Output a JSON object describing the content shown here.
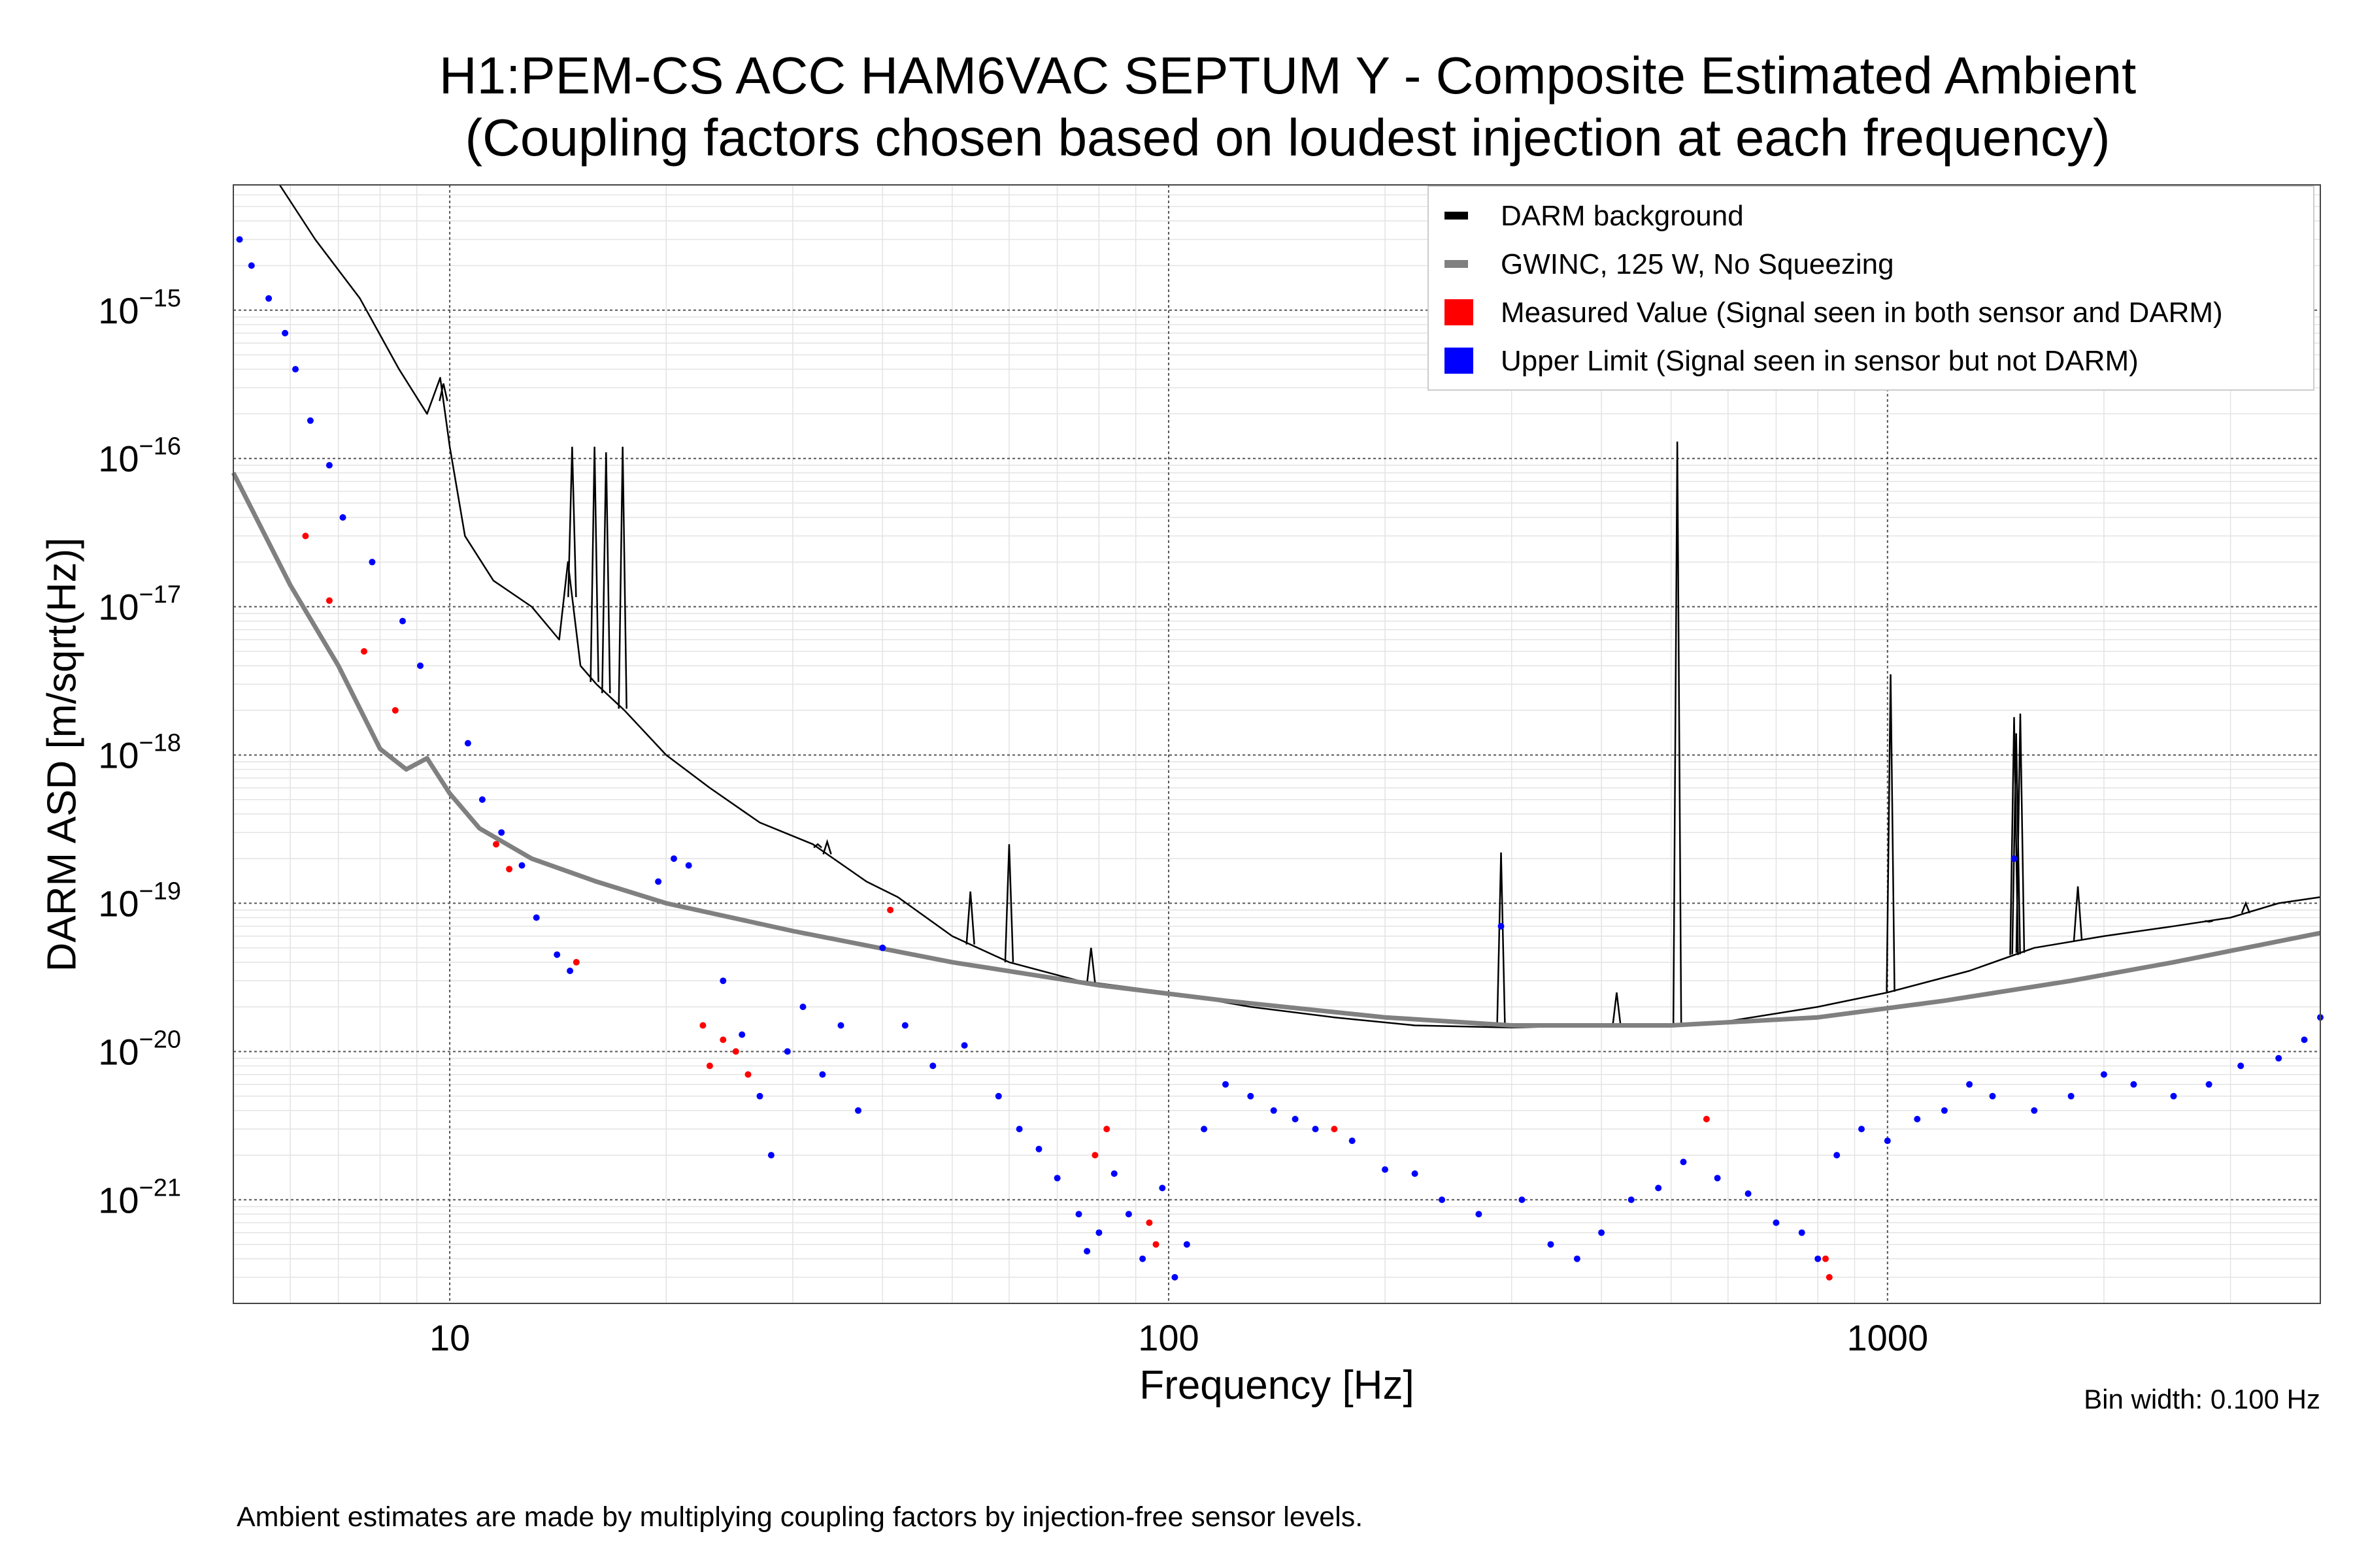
{
  "chart_data": {
    "type": "scatter",
    "title": "H1:PEM-CS ACC HAM6VAC SEPTUM Y - Composite Estimated Ambient",
    "subtitle": "(Coupling factors chosen based on loudest injection at each frequency)",
    "xlabel": "Frequency [Hz]",
    "ylabel": "DARM ASD [m/sqrt(Hz)]",
    "xscale": "log",
    "yscale": "log",
    "xlim": [
      5,
      4000
    ],
    "ylim": [
      2e-22,
      7e-15
    ],
    "grid": true,
    "legend_position": "top-right",
    "x_ticks": [
      {
        "value": 10,
        "label": "10"
      },
      {
        "value": 100,
        "label": "100"
      },
      {
        "value": 1000,
        "label": "1000"
      }
    ],
    "y_ticks": [
      {
        "value": 1e-15,
        "base": "10",
        "exp": "−15"
      },
      {
        "value": 1e-16,
        "base": "10",
        "exp": "−16"
      },
      {
        "value": 1e-17,
        "base": "10",
        "exp": "−17"
      },
      {
        "value": 1e-18,
        "base": "10",
        "exp": "−18"
      },
      {
        "value": 1e-19,
        "base": "10",
        "exp": "−19"
      },
      {
        "value": 1e-20,
        "base": "10",
        "exp": "−20"
      },
      {
        "value": 1e-21,
        "base": "10",
        "exp": "−21"
      }
    ],
    "series": [
      {
        "name": "DARM background",
        "kind": "line",
        "color": "#000000",
        "points": [
          [
            5.8,
            7e-15
          ],
          [
            6.5,
            3e-15
          ],
          [
            7.5,
            1.2e-15
          ],
          [
            8.5,
            4e-16
          ],
          [
            9.3,
            2e-16
          ],
          [
            9.7,
            3.5e-16
          ],
          [
            10,
            1.2e-16
          ],
          [
            10.5,
            3e-17
          ],
          [
            11.5,
            1.5e-17
          ],
          [
            13,
            1e-17
          ],
          [
            14.2,
            6e-18
          ],
          [
            14.6,
            2e-17
          ],
          [
            15.2,
            4e-18
          ],
          [
            16,
            3e-18
          ],
          [
            17.5,
            2e-18
          ],
          [
            20,
            1e-18
          ],
          [
            23,
            6e-19
          ],
          [
            27,
            3.5e-19
          ],
          [
            32,
            2.5e-19
          ],
          [
            38,
            1.4e-19
          ],
          [
            42,
            1.1e-19
          ],
          [
            50,
            6e-20
          ],
          [
            60,
            4e-20
          ],
          [
            75,
            3e-20
          ],
          [
            100,
            2.5e-20
          ],
          [
            130,
            2e-20
          ],
          [
            170,
            1.7e-20
          ],
          [
            220,
            1.5e-20
          ],
          [
            300,
            1.45e-20
          ],
          [
            400,
            1.5e-20
          ],
          [
            500,
            1.5e-20
          ],
          [
            600,
            1.6e-20
          ],
          [
            800,
            2e-20
          ],
          [
            1000,
            2.5e-20
          ],
          [
            1300,
            3.5e-20
          ],
          [
            1600,
            5e-20
          ],
          [
            2000,
            6e-20
          ],
          [
            2500,
            7e-20
          ],
          [
            3000,
            8e-20
          ],
          [
            3500,
            1e-19
          ],
          [
            4000,
            1.1e-19
          ]
        ],
        "peaks": [
          [
            9.8,
            3.2e-16
          ],
          [
            14.8,
            1.2e-16
          ],
          [
            15.9,
            1.2e-16
          ],
          [
            16.5,
            1.1e-16
          ],
          [
            17.4,
            1.2e-16
          ],
          [
            32.5,
            2.5e-19
          ],
          [
            33.5,
            2.6e-19
          ],
          [
            53,
            1.2e-19
          ],
          [
            60,
            2.5e-19
          ],
          [
            78,
            5e-20
          ],
          [
            290,
            2.2e-19
          ],
          [
            420,
            2.5e-20
          ],
          [
            510,
            1.3e-16
          ],
          [
            1010,
            3.5e-18
          ],
          [
            1500,
            1.8e-18
          ],
          [
            1510,
            1.4e-18
          ],
          [
            1530,
            1.9e-18
          ],
          [
            1840,
            1.3e-19
          ],
          [
            2800,
            7.5e-20
          ],
          [
            3150,
            1e-19
          ]
        ]
      },
      {
        "name": "GWINC, 125 W, No Squeezing",
        "kind": "line",
        "color": "#808080",
        "points": [
          [
            5,
            8e-17
          ],
          [
            6,
            1.4e-17
          ],
          [
            7,
            4e-18
          ],
          [
            8,
            1.1e-18
          ],
          [
            8.7,
            8e-19
          ],
          [
            9.3,
            9.5e-19
          ],
          [
            10,
            5.5e-19
          ],
          [
            11,
            3.2e-19
          ],
          [
            13,
            2e-19
          ],
          [
            16,
            1.4e-19
          ],
          [
            20,
            1e-19
          ],
          [
            30,
            6.5e-20
          ],
          [
            50,
            4e-20
          ],
          [
            80,
            2.8e-20
          ],
          [
            120,
            2.2e-20
          ],
          [
            200,
            1.7e-20
          ],
          [
            300,
            1.5e-20
          ],
          [
            500,
            1.5e-20
          ],
          [
            800,
            1.7e-20
          ],
          [
            1200,
            2.2e-20
          ],
          [
            1800,
            3e-20
          ],
          [
            2500,
            4e-20
          ],
          [
            4000,
            6.3e-20
          ]
        ],
        "peaks": []
      },
      {
        "name": "Measured Value (Signal seen in both sensor and DARM)",
        "kind": "scatter",
        "color": "#ff0000",
        "points": [
          [
            6.3,
            3e-17
          ],
          [
            6.8,
            1.1e-17
          ],
          [
            7.6,
            5e-18
          ],
          [
            8.4,
            2e-18
          ],
          [
            11.6,
            2.5e-19
          ],
          [
            12.1,
            1.7e-19
          ],
          [
            15,
            4e-20
          ],
          [
            22.5,
            1.5e-20
          ],
          [
            23,
            8e-21
          ],
          [
            24,
            1.2e-20
          ],
          [
            25,
            1e-20
          ],
          [
            26,
            7e-21
          ],
          [
            41,
            9e-20
          ],
          [
            79,
            2e-21
          ],
          [
            82,
            3e-21
          ],
          [
            94,
            7e-22
          ],
          [
            96,
            5e-22
          ],
          [
            170,
            3e-21
          ],
          [
            560,
            3.5e-21
          ],
          [
            820,
            4e-22
          ],
          [
            830,
            3e-22
          ]
        ]
      },
      {
        "name": "Upper Limit (Signal seen in sensor but not DARM)",
        "kind": "scatter",
        "color": "#0000ff",
        "points": [
          [
            5.1,
            3e-15
          ],
          [
            5.3,
            2e-15
          ],
          [
            5.6,
            1.2e-15
          ],
          [
            5.9,
            7e-16
          ],
          [
            6.1,
            4e-16
          ],
          [
            6.4,
            1.8e-16
          ],
          [
            6.8,
            9e-17
          ],
          [
            7.1,
            4e-17
          ],
          [
            7.8,
            2e-17
          ],
          [
            8.6,
            8e-18
          ],
          [
            9.1,
            4e-18
          ],
          [
            10.6,
            1.2e-18
          ],
          [
            11.1,
            5e-19
          ],
          [
            11.8,
            3e-19
          ],
          [
            12.6,
            1.8e-19
          ],
          [
            13.2,
            8e-20
          ],
          [
            14.1,
            4.5e-20
          ],
          [
            14.7,
            3.5e-20
          ],
          [
            19.5,
            1.4e-19
          ],
          [
            20.5,
            2e-19
          ],
          [
            21.5,
            1.8e-19
          ],
          [
            24,
            3e-20
          ],
          [
            25.5,
            1.3e-20
          ],
          [
            27,
            5e-21
          ],
          [
            28,
            2e-21
          ],
          [
            29.5,
            1e-20
          ],
          [
            31,
            2e-20
          ],
          [
            33,
            7e-21
          ],
          [
            35,
            1.5e-20
          ],
          [
            37,
            4e-21
          ],
          [
            40,
            5e-20
          ],
          [
            43,
            1.5e-20
          ],
          [
            47,
            8e-21
          ],
          [
            52,
            1.1e-20
          ],
          [
            58,
            5e-21
          ],
          [
            62,
            3e-21
          ],
          [
            66,
            2.2e-21
          ],
          [
            70,
            1.4e-21
          ],
          [
            75,
            8e-22
          ],
          [
            77,
            4.5e-22
          ],
          [
            80,
            6e-22
          ],
          [
            84,
            1.5e-21
          ],
          [
            88,
            8e-22
          ],
          [
            92,
            4e-22
          ],
          [
            98,
            1.2e-21
          ],
          [
            102,
            3e-22
          ],
          [
            106,
            5e-22
          ],
          [
            112,
            3e-21
          ],
          [
            120,
            6e-21
          ],
          [
            130,
            5e-21
          ],
          [
            140,
            4e-21
          ],
          [
            150,
            3.5e-21
          ],
          [
            160,
            3e-21
          ],
          [
            180,
            2.5e-21
          ],
          [
            200,
            1.6e-21
          ],
          [
            220,
            1.5e-21
          ],
          [
            240,
            1e-21
          ],
          [
            270,
            8e-22
          ],
          [
            290,
            7e-20
          ],
          [
            310,
            1e-21
          ],
          [
            340,
            5e-22
          ],
          [
            370,
            4e-22
          ],
          [
            400,
            6e-22
          ],
          [
            440,
            1e-21
          ],
          [
            480,
            1.2e-21
          ],
          [
            520,
            1.8e-21
          ],
          [
            580,
            1.4e-21
          ],
          [
            640,
            1.1e-21
          ],
          [
            700,
            7e-22
          ],
          [
            760,
            6e-22
          ],
          [
            800,
            4e-22
          ],
          [
            850,
            2e-21
          ],
          [
            920,
            3e-21
          ],
          [
            1000,
            2.5e-21
          ],
          [
            1100,
            3.5e-21
          ],
          [
            1200,
            4e-21
          ],
          [
            1300,
            6e-21
          ],
          [
            1400,
            5e-21
          ],
          [
            1500,
            2e-19
          ],
          [
            1600,
            4e-21
          ],
          [
            1800,
            5e-21
          ],
          [
            2000,
            7e-21
          ],
          [
            2200,
            6e-21
          ],
          [
            2500,
            5e-21
          ],
          [
            2800,
            6e-21
          ],
          [
            3100,
            8e-21
          ],
          [
            3500,
            9e-21
          ],
          [
            3800,
            1.2e-20
          ],
          [
            4000,
            1.7e-20
          ]
        ]
      }
    ]
  },
  "legend": [
    {
      "label": "DARM background",
      "color": "#000000",
      "marker": "line"
    },
    {
      "label": "GWINC, 125 W, No Squeezing",
      "color": "#808080",
      "marker": "line"
    },
    {
      "label": "Measured Value (Signal seen in both sensor and DARM)",
      "color": "#ff0000",
      "marker": "box"
    },
    {
      "label": "Upper Limit (Signal seen in sensor but not DARM)",
      "color": "#0000ff",
      "marker": "box"
    }
  ],
  "notes": {
    "bin_width": "Bin width: 0.100 Hz",
    "footer": "Ambient estimates are made by multiplying coupling factors by injection-free sensor levels."
  }
}
